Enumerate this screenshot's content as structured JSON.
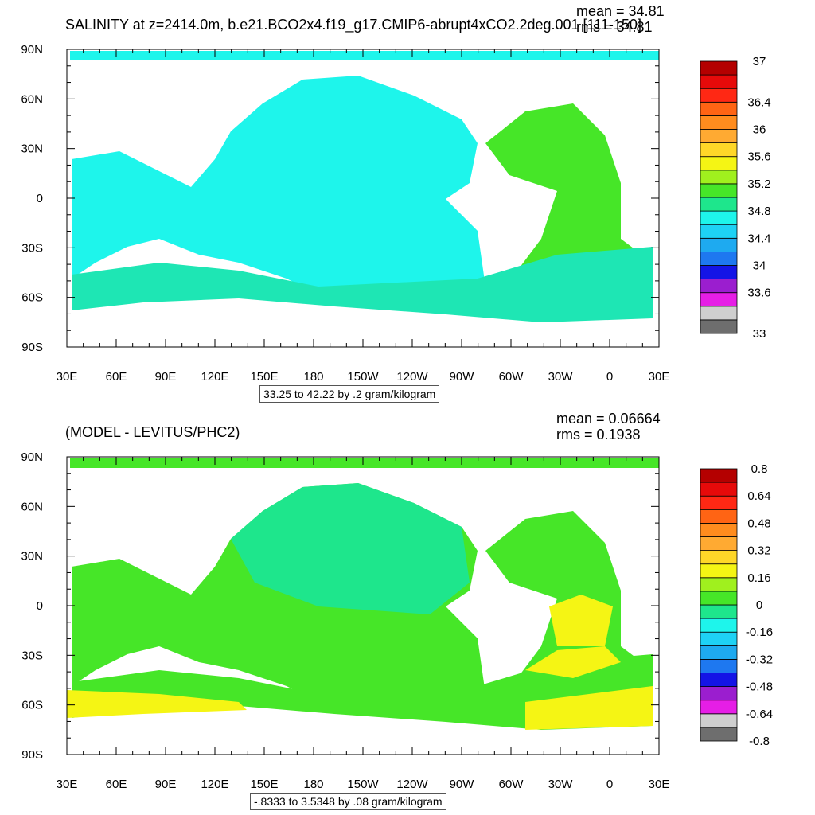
{
  "chart_data": [
    {
      "type": "heatmap",
      "title": "SALINITY at z=2414.0m, b.e21.BCO2x4.f19_g17.CMIP6-abrupt4xCO2.2deg.001 [111-150]",
      "stats": {
        "mean_label": "mean = 34.81",
        "rms_label": "rms = 34.81"
      },
      "x_ticks": [
        "30E",
        "60E",
        "90E",
        "120E",
        "150E",
        "180",
        "150W",
        "120W",
        "90W",
        "60W",
        "30W",
        "0",
        "30E"
      ],
      "y_ticks": [
        "90N",
        "60N",
        "30N",
        "0",
        "30S",
        "60S",
        "90S"
      ],
      "xlim": [
        30,
        390
      ],
      "ylim": [
        -90,
        90
      ],
      "contour_info": "33.25 to 42.22 by .2 gram/kilogram",
      "colorbar": {
        "colors": [
          "#6e6e6e",
          "#cfcfcf",
          "#e61ee6",
          "#9b1ecf",
          "#1414e6",
          "#1e78f0",
          "#1eaaf0",
          "#1ed2f5",
          "#1ef5eb",
          "#1ee68c",
          "#46e628",
          "#a0f01e",
          "#f5f514",
          "#ffd728",
          "#ffaa32",
          "#ff8c1e",
          "#ff6414",
          "#ff2814",
          "#e60a0a",
          "#b40000"
        ],
        "labels": [
          "33",
          "33.6",
          "34",
          "34.4",
          "34.8",
          "35.2",
          "35.6",
          "36",
          "36.4",
          "37"
        ],
        "label_slots": [
          0,
          3,
          5,
          7,
          9,
          11,
          13,
          15,
          17,
          20
        ]
      }
    },
    {
      "type": "heatmap",
      "title": "(MODEL - LEVITUS/PHC2)",
      "stats": {
        "mean_label": "mean = 0.06664",
        "rms_label": "rms = 0.1938"
      },
      "x_ticks": [
        "30E",
        "60E",
        "90E",
        "120E",
        "150E",
        "180",
        "150W",
        "120W",
        "90W",
        "60W",
        "30W",
        "0",
        "30E"
      ],
      "y_ticks": [
        "90N",
        "60N",
        "30N",
        "0",
        "30S",
        "60S",
        "90S"
      ],
      "xlim": [
        30,
        390
      ],
      "ylim": [
        -90,
        90
      ],
      "contour_info": "-.8333 to 3.5348 by .08 gram/kilogram",
      "colorbar": {
        "colors": [
          "#6e6e6e",
          "#cfcfcf",
          "#e61ee6",
          "#9b1ecf",
          "#1414e6",
          "#1e78f0",
          "#1eaaf0",
          "#1ed2f5",
          "#1ef5eb",
          "#1ee68c",
          "#46e628",
          "#a0f01e",
          "#f5f514",
          "#ffd728",
          "#ffaa32",
          "#ff8c1e",
          "#ff6414",
          "#ff2814",
          "#e60a0a",
          "#b40000"
        ],
        "labels": [
          "-0.8",
          "-0.64",
          "-0.48",
          "-0.32",
          "-0.16",
          "0",
          "0.16",
          "0.32",
          "0.48",
          "0.64",
          "0.8"
        ],
        "label_slots": [
          0,
          2,
          4,
          6,
          8,
          10,
          12,
          14,
          16,
          18,
          20
        ]
      }
    }
  ]
}
